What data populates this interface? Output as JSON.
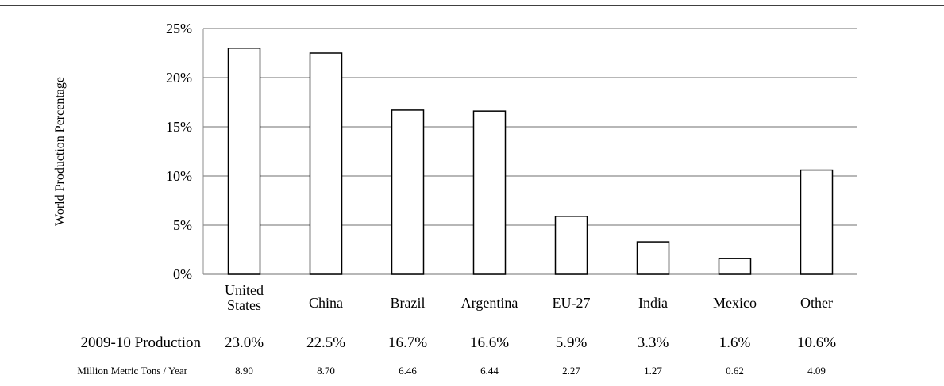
{
  "chart_data": {
    "type": "bar",
    "categories": [
      [
        "United",
        "States"
      ],
      [
        "China"
      ],
      [
        "Brazil"
      ],
      [
        "Argentina"
      ],
      [
        "EU-27"
      ],
      [
        "India"
      ],
      [
        "Mexico"
      ],
      [
        "Other"
      ]
    ],
    "values": [
      23.0,
      22.5,
      16.7,
      16.6,
      5.9,
      3.3,
      1.6,
      10.6
    ],
    "ylabel": "World Production Percentage",
    "ylim": [
      0,
      25
    ],
    "yticks": [
      0,
      5,
      10,
      15,
      20,
      25
    ],
    "ytick_labels": [
      "0%",
      "5%",
      "10%",
      "15%",
      "20%",
      "25%"
    ],
    "grid": true,
    "bar_fill": "#ffffff",
    "bar_stroke": "#000000",
    "grid_color": "#8c8c8c",
    "table_rows": [
      {
        "label": "2009-10 Production",
        "values": [
          "23.0%",
          "22.5%",
          "16.7%",
          "16.6%",
          "5.9%",
          "3.3%",
          "1.6%",
          "10.6%"
        ]
      },
      {
        "label": "Million Metric Tons / Year",
        "values": [
          "8.90",
          "8.70",
          "6.46",
          "6.44",
          "2.27",
          "1.27",
          "0.62",
          "4.09"
        ]
      }
    ]
  }
}
